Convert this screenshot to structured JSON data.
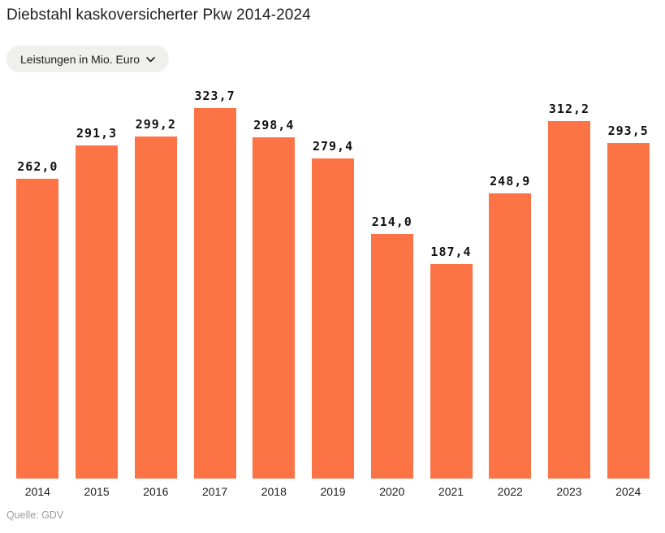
{
  "header": {
    "title": "Diebstahl kaskoversicherter Pkw 2014-2024"
  },
  "controls": {
    "metric_dropdown": {
      "label": "Leistungen in Mio. Euro"
    }
  },
  "chart_data": {
    "type": "bar",
    "title": "Diebstahl kaskoversicherter Pkw 2014-2024",
    "categories": [
      "2014",
      "2015",
      "2016",
      "2017",
      "2018",
      "2019",
      "2020",
      "2021",
      "2022",
      "2023",
      "2024"
    ],
    "values": [
      262.0,
      291.3,
      299.2,
      323.7,
      298.4,
      279.4,
      214.0,
      187.4,
      248.9,
      312.2,
      293.5
    ],
    "value_labels": [
      "262,0",
      "291,3",
      "299,2",
      "323,7",
      "298,4",
      "279,4",
      "214,0",
      "187,4",
      "248,9",
      "312,2",
      "293,5"
    ],
    "xlabel": "",
    "ylabel": "Leistungen in Mio. Euro",
    "ylim": [
      0,
      323.7
    ],
    "grid": false,
    "legend": "none",
    "bar_color": "#fc7345"
  },
  "footer": {
    "source": "Quelle: GDV"
  },
  "colors": {
    "bar": "#fc7345",
    "title_text": "#1d1d1b",
    "axis_text": "#1d1d1b",
    "value_text": "#111111",
    "source_text": "#9b9b9b",
    "dropdown_bg": "#efefee"
  }
}
